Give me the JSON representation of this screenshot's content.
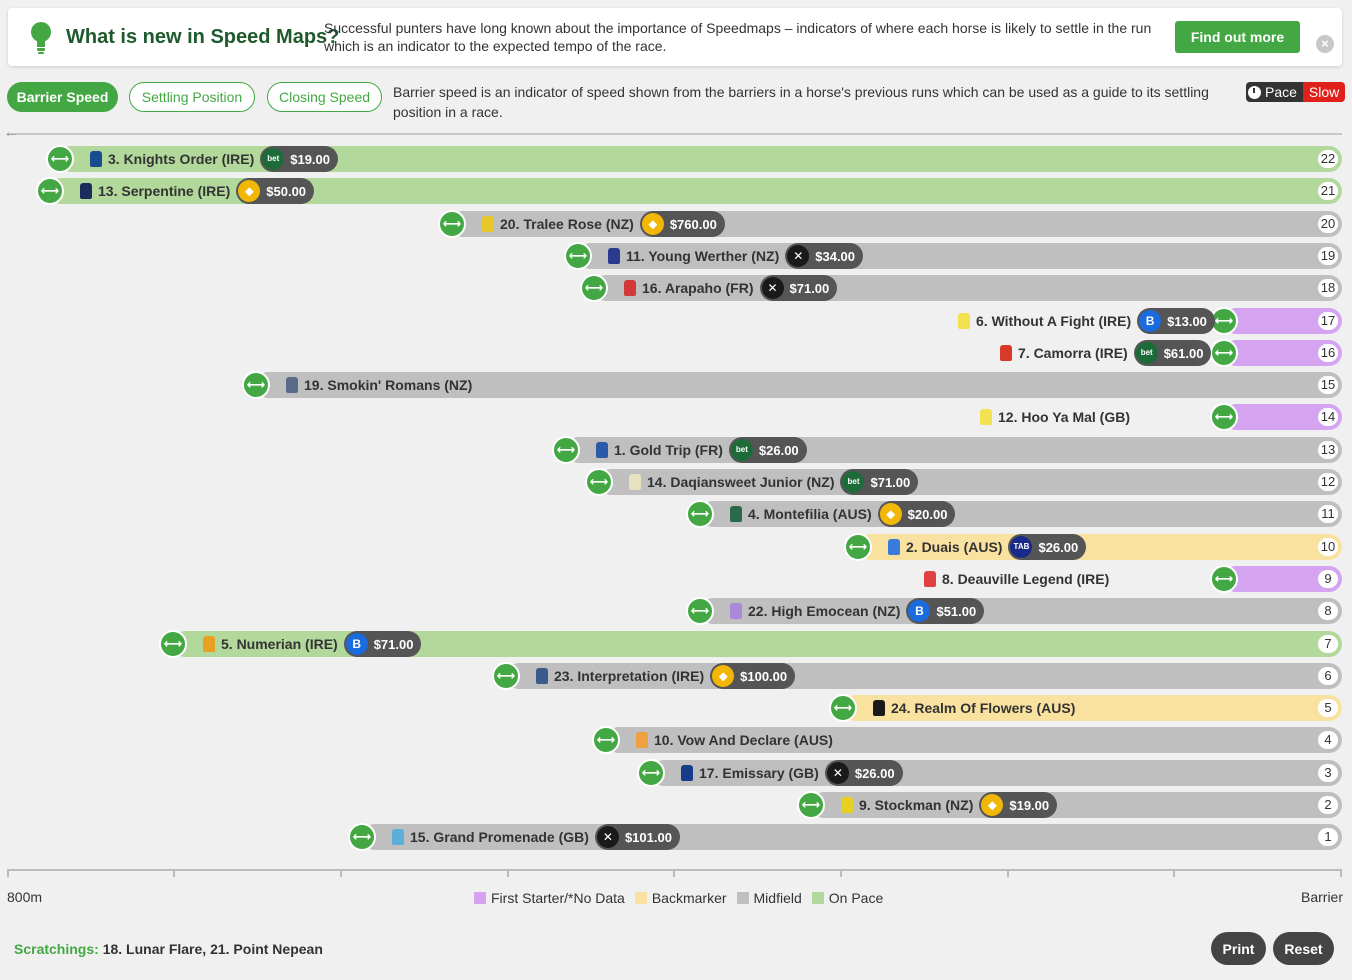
{
  "banner": {
    "title": "What is new in Speed Maps?",
    "description": "Successful punters have long known about the importance of Speedmaps – indicators of where each horse is likely to settle in the run which is an indicator to the expected tempo of the race.",
    "cta_label": "Find out more",
    "close_icon": "close-icon",
    "bulb_icon": "lightbulb-icon"
  },
  "tabs": [
    {
      "label": "Barrier Speed",
      "active": true
    },
    {
      "label": "Settling Position",
      "active": false
    },
    {
      "label": "Closing Speed",
      "active": false
    }
  ],
  "mode_description": "Barrier speed is an indicator of speed shown from the barriers in a horse's previous runs which can be used as a guide to its settling position in a race.",
  "pace": {
    "label": "Pace",
    "value": "Slow"
  },
  "colors": {
    "on_pace": "#b3d89b",
    "midfield": "#bfbfbf",
    "backmarker": "#f9e1a0",
    "first_starter": "#d4a4f0",
    "accent": "#43a843"
  },
  "runners": [
    {
      "pos": "22",
      "name": "3. Knights Order (IRE)",
      "odds": "$19.00",
      "bookie": "bet365",
      "cat": "on_pace",
      "silk": "#1a4d8f"
    },
    {
      "pos": "21",
      "name": "13. Serpentine (IRE)",
      "odds": "$50.00",
      "bookie": "sportsbet",
      "cat": "on_pace",
      "silk": "#1a2b5c"
    },
    {
      "pos": "20",
      "name": "20. Tralee Rose (NZ)",
      "odds": "$760.00",
      "bookie": "sportsbet",
      "cat": "midfield",
      "silk": "#e6c62a"
    },
    {
      "pos": "19",
      "name": "11. Young Werther (NZ)",
      "odds": "$34.00",
      "bookie": "pointsbet",
      "cat": "midfield",
      "silk": "#2a3a8f"
    },
    {
      "pos": "18",
      "name": "16. Arapaho (FR)",
      "odds": "$71.00",
      "bookie": "pointsbet",
      "cat": "midfield",
      "silk": "#d23a3a"
    },
    {
      "pos": "17",
      "name": "6. Without A Fight (IRE)",
      "odds": "$13.00",
      "bookie": "betr",
      "cat": "first_starter",
      "silk": "#f2e250"
    },
    {
      "pos": "16",
      "name": "7. Camorra (IRE)",
      "odds": "$61.00",
      "bookie": "bet365",
      "cat": "first_starter",
      "silk": "#d83a2a"
    },
    {
      "pos": "15",
      "name": "19. Smokin' Romans (NZ)",
      "odds": "",
      "bookie": "",
      "cat": "midfield",
      "silk": "#5a6a8a"
    },
    {
      "pos": "14",
      "name": "12. Hoo Ya Mal (GB)",
      "odds": "",
      "bookie": "",
      "cat": "first_starter",
      "silk": "#f2e250"
    },
    {
      "pos": "13",
      "name": "1. Gold Trip (FR)",
      "odds": "$26.00",
      "bookie": "bet365",
      "cat": "midfield",
      "silk": "#2a5aa8"
    },
    {
      "pos": "12",
      "name": "14. Daqiansweet Junior (NZ)",
      "odds": "$71.00",
      "bookie": "bet365",
      "cat": "midfield",
      "silk": "#e8e2c0"
    },
    {
      "pos": "11",
      "name": "4. Montefilia (AUS)",
      "odds": "$20.00",
      "bookie": "sportsbet",
      "cat": "midfield",
      "silk": "#2a6a4a"
    },
    {
      "pos": "10",
      "name": "2. Duais (AUS)",
      "odds": "$26.00",
      "bookie": "tab",
      "cat": "backmarker",
      "silk": "#3a7ad8"
    },
    {
      "pos": "9",
      "name": "8. Deauville Legend (IRE)",
      "odds": "",
      "bookie": "",
      "cat": "first_starter",
      "silk": "#e04040"
    },
    {
      "pos": "8",
      "name": "22. High Emocean (NZ)",
      "odds": "$51.00",
      "bookie": "betr",
      "cat": "midfield",
      "silk": "#a88ad8"
    },
    {
      "pos": "7",
      "name": "5. Numerian (IRE)",
      "odds": "$71.00",
      "bookie": "betr",
      "cat": "on_pace",
      "silk": "#e8a020"
    },
    {
      "pos": "6",
      "name": "23. Interpretation (IRE)",
      "odds": "$100.00",
      "bookie": "sportsbet",
      "cat": "midfield",
      "silk": "#3a5a8a"
    },
    {
      "pos": "5",
      "name": "24. Realm Of Flowers (AUS)",
      "odds": "",
      "bookie": "",
      "cat": "backmarker",
      "silk": "#1a1a1a"
    },
    {
      "pos": "4",
      "name": "10. Vow And Declare (AUS)",
      "odds": "",
      "bookie": "",
      "cat": "midfield",
      "silk": "#f0a040"
    },
    {
      "pos": "3",
      "name": "17. Emissary (GB)",
      "odds": "$26.00",
      "bookie": "pointsbet",
      "cat": "midfield",
      "silk": "#1a3a8a"
    },
    {
      "pos": "2",
      "name": "9. Stockman (NZ)",
      "odds": "$19.00",
      "bookie": "sportsbet",
      "cat": "midfield",
      "silk": "#e8d020"
    },
    {
      "pos": "1",
      "name": "15. Grand Promenade (GB)",
      "odds": "$101.00",
      "bookie": "pointsbet",
      "cat": "midfield",
      "silk": "#5ab0d8"
    }
  ],
  "axis": {
    "left_label": "800m",
    "right_label": "Barrier"
  },
  "legend": [
    {
      "label": "First Starter/*No Data",
      "color": "#d4a4f0"
    },
    {
      "label": "Backmarker",
      "color": "#f9e1a0"
    },
    {
      "label": "Midfield",
      "color": "#bfbfbf"
    },
    {
      "label": "On Pace",
      "color": "#b3d89b"
    }
  ],
  "scratchings": {
    "label": "Scratchings:",
    "value": "18. Lunar Flare, 21. Point Nepean"
  },
  "footer": {
    "print_label": "Print",
    "reset_label": "Reset"
  }
}
